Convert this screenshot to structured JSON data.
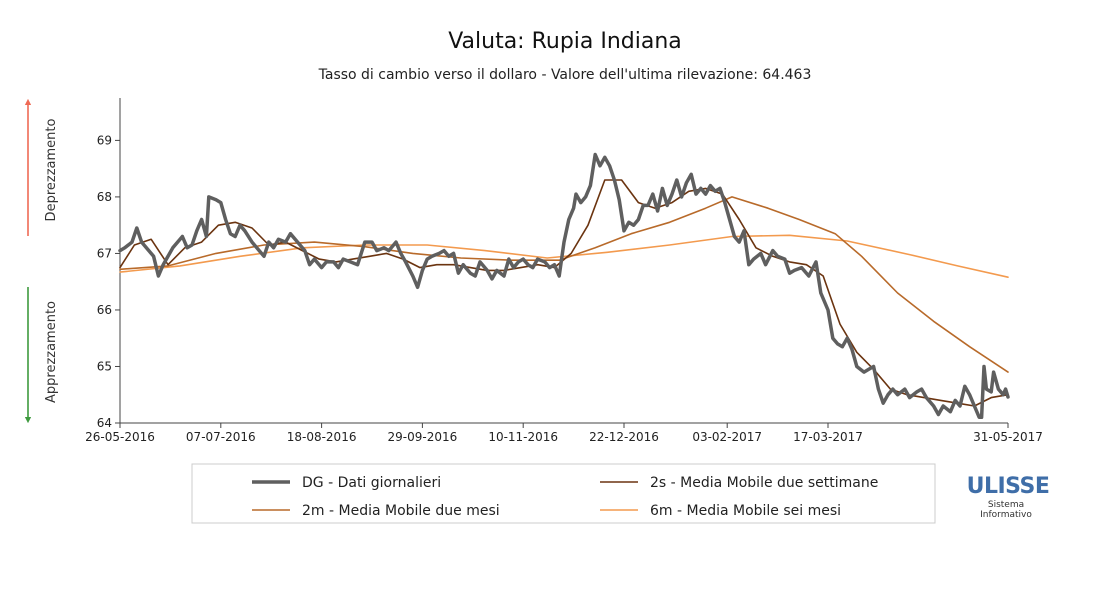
{
  "chart_data": {
    "type": "line",
    "title": "Valuta: Rupia Indiana",
    "subtitle": "Tasso di cambio verso il dollaro - Valore dell'ultima rilevazione: 64.463",
    "ylim": [
      64,
      69.75
    ],
    "yticks": [
      64,
      65,
      66,
      67,
      68,
      69
    ],
    "xlim": [
      "2016-05-26",
      "2017-05-31"
    ],
    "xticks": [
      "26-05-2016",
      "07-07-2016",
      "18-08-2016",
      "29-09-2016",
      "10-11-2016",
      "22-12-2016",
      "03-02-2017",
      "17-03-2017",
      "31-05-2017"
    ],
    "side_labels": {
      "up": "Deprezzamento",
      "down": "Apprezzamento"
    },
    "legend": {
      "placement": "bottom"
    },
    "series": [
      {
        "name": "DG - Dati giornalieri",
        "color": "#5f5f5f",
        "points": [
          [
            "2016-05-26",
            67.05
          ],
          [
            "2016-05-28",
            67.1
          ],
          [
            "2016-05-31",
            67.2
          ],
          [
            "2016-06-02",
            67.45
          ],
          [
            "2016-06-04",
            67.2
          ],
          [
            "2016-06-07",
            67.05
          ],
          [
            "2016-06-09",
            66.95
          ],
          [
            "2016-06-11",
            66.6
          ],
          [
            "2016-06-13",
            66.8
          ],
          [
            "2016-06-15",
            66.95
          ],
          [
            "2016-06-17",
            67.1
          ],
          [
            "2016-06-19",
            67.2
          ],
          [
            "2016-06-21",
            67.3
          ],
          [
            "2016-06-23",
            67.1
          ],
          [
            "2016-06-25",
            67.15
          ],
          [
            "2016-06-27",
            67.4
          ],
          [
            "2016-06-29",
            67.6
          ],
          [
            "2016-07-01",
            67.3
          ],
          [
            "2016-07-02",
            68.0
          ],
          [
            "2016-07-05",
            67.95
          ],
          [
            "2016-07-07",
            67.9
          ],
          [
            "2016-07-09",
            67.6
          ],
          [
            "2016-07-11",
            67.35
          ],
          [
            "2016-07-13",
            67.3
          ],
          [
            "2016-07-15",
            67.5
          ],
          [
            "2016-07-17",
            67.4
          ],
          [
            "2016-07-20",
            67.2
          ],
          [
            "2016-07-23",
            67.05
          ],
          [
            "2016-07-25",
            66.95
          ],
          [
            "2016-07-27",
            67.2
          ],
          [
            "2016-07-29",
            67.1
          ],
          [
            "2016-07-31",
            67.25
          ],
          [
            "2016-08-03",
            67.2
          ],
          [
            "2016-08-05",
            67.35
          ],
          [
            "2016-08-08",
            67.2
          ],
          [
            "2016-08-11",
            67.05
          ],
          [
            "2016-08-13",
            66.8
          ],
          [
            "2016-08-15",
            66.9
          ],
          [
            "2016-08-18",
            66.75
          ],
          [
            "2016-08-20",
            66.85
          ],
          [
            "2016-08-23",
            66.85
          ],
          [
            "2016-08-25",
            66.75
          ],
          [
            "2016-08-27",
            66.9
          ],
          [
            "2016-08-30",
            66.85
          ],
          [
            "2016-09-02",
            66.8
          ],
          [
            "2016-09-05",
            67.2
          ],
          [
            "2016-09-08",
            67.2
          ],
          [
            "2016-09-10",
            67.05
          ],
          [
            "2016-09-13",
            67.1
          ],
          [
            "2016-09-15",
            67.05
          ],
          [
            "2016-09-18",
            67.2
          ],
          [
            "2016-09-20",
            67.0
          ],
          [
            "2016-09-22",
            66.85
          ],
          [
            "2016-09-25",
            66.6
          ],
          [
            "2016-09-27",
            66.4
          ],
          [
            "2016-09-29",
            66.7
          ],
          [
            "2016-10-01",
            66.9
          ],
          [
            "2016-10-03",
            66.95
          ],
          [
            "2016-10-06",
            67.0
          ],
          [
            "2016-10-08",
            67.05
          ],
          [
            "2016-10-10",
            66.95
          ],
          [
            "2016-10-12",
            67.0
          ],
          [
            "2016-10-14",
            66.65
          ],
          [
            "2016-10-16",
            66.8
          ],
          [
            "2016-10-19",
            66.65
          ],
          [
            "2016-10-21",
            66.6
          ],
          [
            "2016-10-23",
            66.85
          ],
          [
            "2016-10-26",
            66.7
          ],
          [
            "2016-10-28",
            66.55
          ],
          [
            "2016-10-30",
            66.7
          ],
          [
            "2016-11-02",
            66.6
          ],
          [
            "2016-11-04",
            66.9
          ],
          [
            "2016-11-06",
            66.75
          ],
          [
            "2016-11-08",
            66.85
          ],
          [
            "2016-11-10",
            66.9
          ],
          [
            "2016-11-12",
            66.8
          ],
          [
            "2016-11-14",
            66.75
          ],
          [
            "2016-11-16",
            66.9
          ],
          [
            "2016-11-19",
            66.85
          ],
          [
            "2016-11-21",
            66.75
          ],
          [
            "2016-11-23",
            66.8
          ],
          [
            "2016-11-25",
            66.6
          ],
          [
            "2016-11-27",
            67.2
          ],
          [
            "2016-11-29",
            67.6
          ],
          [
            "2016-12-01",
            67.8
          ],
          [
            "2016-12-02",
            68.05
          ],
          [
            "2016-12-04",
            67.9
          ],
          [
            "2016-12-06",
            68.0
          ],
          [
            "2016-12-08",
            68.2
          ],
          [
            "2016-12-10",
            68.75
          ],
          [
            "2016-12-12",
            68.55
          ],
          [
            "2016-12-14",
            68.7
          ],
          [
            "2016-12-16",
            68.55
          ],
          [
            "2016-12-18",
            68.3
          ],
          [
            "2016-12-20",
            67.95
          ],
          [
            "2016-12-22",
            67.4
          ],
          [
            "2016-12-24",
            67.55
          ],
          [
            "2016-12-26",
            67.5
          ],
          [
            "2016-12-28",
            67.6
          ],
          [
            "2016-12-30",
            67.85
          ],
          [
            "2017-01-01",
            67.85
          ],
          [
            "2017-01-03",
            68.05
          ],
          [
            "2017-01-05",
            67.75
          ],
          [
            "2017-01-07",
            68.15
          ],
          [
            "2017-01-09",
            67.85
          ],
          [
            "2017-01-11",
            68.05
          ],
          [
            "2017-01-13",
            68.3
          ],
          [
            "2017-01-15",
            68.0
          ],
          [
            "2017-01-17",
            68.25
          ],
          [
            "2017-01-19",
            68.4
          ],
          [
            "2017-01-21",
            68.05
          ],
          [
            "2017-01-23",
            68.15
          ],
          [
            "2017-01-25",
            68.05
          ],
          [
            "2017-01-27",
            68.2
          ],
          [
            "2017-01-29",
            68.1
          ],
          [
            "2017-01-31",
            68.15
          ],
          [
            "2017-02-02",
            67.9
          ],
          [
            "2017-02-04",
            67.6
          ],
          [
            "2017-02-06",
            67.3
          ],
          [
            "2017-02-08",
            67.2
          ],
          [
            "2017-02-10",
            67.4
          ],
          [
            "2017-02-12",
            66.8
          ],
          [
            "2017-02-14",
            66.9
          ],
          [
            "2017-02-17",
            67.0
          ],
          [
            "2017-02-19",
            66.8
          ],
          [
            "2017-02-22",
            67.05
          ],
          [
            "2017-02-24",
            66.95
          ],
          [
            "2017-02-27",
            66.9
          ],
          [
            "2017-03-01",
            66.65
          ],
          [
            "2017-03-03",
            66.7
          ],
          [
            "2017-03-06",
            66.75
          ],
          [
            "2017-03-09",
            66.6
          ],
          [
            "2017-03-12",
            66.85
          ],
          [
            "2017-03-14",
            66.3
          ],
          [
            "2017-03-17",
            66.0
          ],
          [
            "2017-03-19",
            65.5
          ],
          [
            "2017-03-21",
            65.4
          ],
          [
            "2017-03-23",
            65.35
          ],
          [
            "2017-03-25",
            65.5
          ],
          [
            "2017-03-27",
            65.3
          ],
          [
            "2017-03-29",
            65.0
          ],
          [
            "2017-04-01",
            64.9
          ],
          [
            "2017-04-03",
            64.95
          ],
          [
            "2017-04-05",
            65.0
          ],
          [
            "2017-04-07",
            64.6
          ],
          [
            "2017-04-09",
            64.35
          ],
          [
            "2017-04-11",
            64.5
          ],
          [
            "2017-04-13",
            64.6
          ],
          [
            "2017-04-15",
            64.5
          ],
          [
            "2017-04-18",
            64.6
          ],
          [
            "2017-04-20",
            64.45
          ],
          [
            "2017-04-23",
            64.55
          ],
          [
            "2017-04-25",
            64.6
          ],
          [
            "2017-04-27",
            64.45
          ],
          [
            "2017-04-30",
            64.3
          ],
          [
            "2017-05-02",
            64.15
          ],
          [
            "2017-05-04",
            64.3
          ],
          [
            "2017-05-07",
            64.2
          ],
          [
            "2017-05-09",
            64.4
          ],
          [
            "2017-05-11",
            64.3
          ],
          [
            "2017-05-13",
            64.65
          ],
          [
            "2017-05-15",
            64.5
          ],
          [
            "2017-05-17",
            64.3
          ],
          [
            "2017-05-19",
            64.1
          ],
          [
            "2017-05-20",
            64.1
          ],
          [
            "2017-05-21",
            65.0
          ],
          [
            "2017-05-22",
            64.6
          ],
          [
            "2017-05-24",
            64.55
          ],
          [
            "2017-05-25",
            64.9
          ],
          [
            "2017-05-27",
            64.6
          ],
          [
            "2017-05-29",
            64.5
          ],
          [
            "2017-05-30",
            64.6
          ],
          [
            "2017-05-31",
            64.46
          ]
        ]
      },
      {
        "name": "2s - Media Mobile due settimane",
        "color": "#6b3410",
        "points": [
          [
            "2016-05-26",
            66.75
          ],
          [
            "2016-06-01",
            67.15
          ],
          [
            "2016-06-08",
            67.25
          ],
          [
            "2016-06-15",
            66.8
          ],
          [
            "2016-06-22",
            67.1
          ],
          [
            "2016-06-29",
            67.2
          ],
          [
            "2016-07-06",
            67.5
          ],
          [
            "2016-07-13",
            67.55
          ],
          [
            "2016-07-20",
            67.45
          ],
          [
            "2016-07-27",
            67.15
          ],
          [
            "2016-08-03",
            67.2
          ],
          [
            "2016-08-10",
            67.05
          ],
          [
            "2016-08-17",
            66.9
          ],
          [
            "2016-08-24",
            66.85
          ],
          [
            "2016-08-31",
            66.9
          ],
          [
            "2016-09-07",
            66.95
          ],
          [
            "2016-09-14",
            67.0
          ],
          [
            "2016-09-21",
            66.9
          ],
          [
            "2016-09-28",
            66.75
          ],
          [
            "2016-10-05",
            66.8
          ],
          [
            "2016-10-12",
            66.8
          ],
          [
            "2016-10-19",
            66.75
          ],
          [
            "2016-10-26",
            66.7
          ],
          [
            "2016-11-02",
            66.7
          ],
          [
            "2016-11-09",
            66.75
          ],
          [
            "2016-11-16",
            66.8
          ],
          [
            "2016-11-23",
            66.75
          ],
          [
            "2016-11-30",
            67.0
          ],
          [
            "2016-12-07",
            67.5
          ],
          [
            "2016-12-14",
            68.3
          ],
          [
            "2016-12-21",
            68.3
          ],
          [
            "2016-12-28",
            67.9
          ],
          [
            "2017-01-04",
            67.8
          ],
          [
            "2017-01-11",
            67.9
          ],
          [
            "2017-01-18",
            68.1
          ],
          [
            "2017-01-25",
            68.15
          ],
          [
            "2017-02-01",
            68.05
          ],
          [
            "2017-02-08",
            67.6
          ],
          [
            "2017-02-15",
            67.1
          ],
          [
            "2017-02-22",
            66.95
          ],
          [
            "2017-03-01",
            66.85
          ],
          [
            "2017-03-08",
            66.8
          ],
          [
            "2017-03-15",
            66.6
          ],
          [
            "2017-03-22",
            65.75
          ],
          [
            "2017-03-29",
            65.25
          ],
          [
            "2017-04-05",
            64.95
          ],
          [
            "2017-04-12",
            64.6
          ],
          [
            "2017-04-19",
            64.5
          ],
          [
            "2017-04-26",
            64.45
          ],
          [
            "2017-05-03",
            64.4
          ],
          [
            "2017-05-10",
            64.35
          ],
          [
            "2017-05-17",
            64.3
          ],
          [
            "2017-05-24",
            64.45
          ],
          [
            "2017-05-31",
            64.5
          ]
        ]
      },
      {
        "name": "2m - Media Mobile due mesi",
        "color": "#b86a2a",
        "points": [
          [
            "2016-05-26",
            66.72
          ],
          [
            "2016-06-15",
            66.78
          ],
          [
            "2016-07-05",
            67.0
          ],
          [
            "2016-07-25",
            67.15
          ],
          [
            "2016-08-15",
            67.2
          ],
          [
            "2016-09-05",
            67.12
          ],
          [
            "2016-09-25",
            67.0
          ],
          [
            "2016-10-15",
            66.92
          ],
          [
            "2016-11-05",
            66.88
          ],
          [
            "2016-11-25",
            66.88
          ],
          [
            "2016-12-10",
            67.1
          ],
          [
            "2016-12-25",
            67.35
          ],
          [
            "2017-01-10",
            67.55
          ],
          [
            "2017-01-25",
            67.8
          ],
          [
            "2017-02-05",
            68.0
          ],
          [
            "2017-02-20",
            67.8
          ],
          [
            "2017-03-05",
            67.6
          ],
          [
            "2017-03-20",
            67.35
          ],
          [
            "2017-03-31",
            66.95
          ],
          [
            "2017-04-15",
            66.3
          ],
          [
            "2017-04-30",
            65.8
          ],
          [
            "2017-05-15",
            65.35
          ],
          [
            "2017-05-31",
            64.9
          ]
        ]
      },
      {
        "name": "6m - Media Mobile sei mesi",
        "color": "#f39a4e",
        "points": [
          [
            "2016-05-26",
            66.67
          ],
          [
            "2016-06-20",
            66.78
          ],
          [
            "2016-07-15",
            66.95
          ],
          [
            "2016-08-10",
            67.1
          ],
          [
            "2016-09-05",
            67.15
          ],
          [
            "2016-10-01",
            67.15
          ],
          [
            "2016-10-25",
            67.05
          ],
          [
            "2016-11-20",
            66.92
          ],
          [
            "2016-12-15",
            67.02
          ],
          [
            "2017-01-10",
            67.15
          ],
          [
            "2017-02-05",
            67.3
          ],
          [
            "2017-03-01",
            67.32
          ],
          [
            "2017-03-25",
            67.22
          ],
          [
            "2017-04-20",
            66.98
          ],
          [
            "2017-05-10",
            66.78
          ],
          [
            "2017-05-31",
            66.58
          ]
        ]
      }
    ]
  },
  "logo": {
    "name": "ULISSE",
    "line1": "Sistema",
    "line2": "Informativo"
  }
}
